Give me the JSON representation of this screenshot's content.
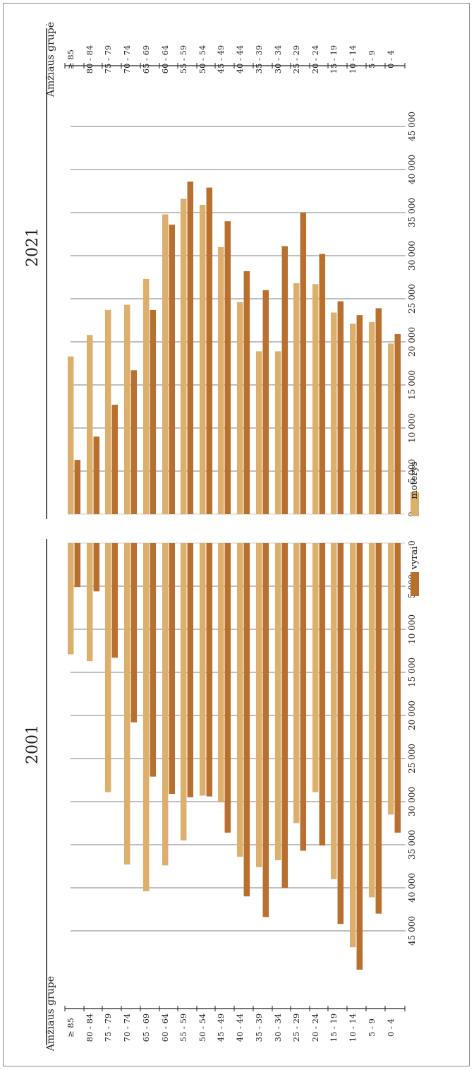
{
  "chart_data": [
    {
      "type": "bar",
      "title": "2021",
      "xlabel": "Amžiaus grupė",
      "categories": [
        "≥ 85",
        "80 - 84",
        "75 - 79",
        "70 - 74",
        "65 - 69",
        "60 - 64",
        "55 - 59",
        "50 - 54",
        "45 - 49",
        "40 - 44",
        "35 - 39",
        "30 - 34",
        "25 - 29",
        "20 - 24",
        "15 - 19",
        "10 - 14",
        "5 - 9",
        "0 - 4"
      ],
      "ylim": [
        0,
        45000
      ],
      "yticks": [
        0,
        5000,
        10000,
        15000,
        20000,
        25000,
        30000,
        35000,
        40000,
        45000
      ],
      "ytick_labels": [
        "0",
        "5 000",
        "10 000",
        "15 000",
        "20 000",
        "25 000",
        "30 000",
        "35 000",
        "40 000",
        "45 000"
      ],
      "series": [
        {
          "name": "moterys",
          "color": "#dcb06c",
          "values": [
            18300,
            20800,
            23700,
            24300,
            27300,
            34800,
            36600,
            35900,
            31000,
            24600,
            18900,
            18900,
            26800,
            26700,
            23400,
            22100,
            22300,
            19800
          ]
        },
        {
          "name": "vyrai",
          "color": "#b96f2e",
          "values": [
            6300,
            9000,
            12700,
            16700,
            23700,
            33600,
            38600,
            37900,
            34000,
            28200,
            26000,
            31100,
            35000,
            30200,
            24700,
            23100,
            23900,
            20900
          ]
        }
      ],
      "legend": [
        {
          "label": "moterys",
          "color": "#dcb06c"
        }
      ],
      "grid": true
    },
    {
      "type": "bar",
      "title": "2001",
      "xlabel": "Amžiaus grupė",
      "categories": [
        "≥ 85",
        "80 - 84",
        "75 - 79",
        "70 - 74",
        "65 - 69",
        "60 - 64",
        "55 - 59",
        "50 - 54",
        "45 - 49",
        "40 - 44",
        "35 - 39",
        "30 - 34",
        "25 - 29",
        "20 - 24",
        "15 - 19",
        "10 - 14",
        "5 - 9",
        "0 - 4"
      ],
      "ylim": [
        0,
        50000
      ],
      "yticks": [
        0,
        5000,
        10000,
        15000,
        20000,
        25000,
        30000,
        35000,
        40000,
        45000
      ],
      "ytick_labels": [
        "0",
        "5 000",
        "10 000",
        "15 000",
        "20 000",
        "25 000",
        "30 000",
        "35 000",
        "40 000",
        "45 000"
      ],
      "series": [
        {
          "name": "moterys",
          "color": "#dcb06c",
          "values": [
            12900,
            13700,
            28900,
            37300,
            40400,
            37400,
            34500,
            29300,
            30100,
            36400,
            37600,
            36800,
            32500,
            28900,
            39000,
            46900,
            41100,
            31500
          ]
        },
        {
          "name": "vyrai",
          "color": "#b96f2e",
          "values": [
            5100,
            5600,
            13300,
            20800,
            27100,
            29100,
            29500,
            29400,
            33600,
            41000,
            43400,
            40000,
            35700,
            35100,
            44200,
            49500,
            43000,
            33600
          ]
        }
      ],
      "legend": [
        {
          "label": "vyrai",
          "color": "#b96f2e"
        }
      ],
      "grid": true
    }
  ]
}
